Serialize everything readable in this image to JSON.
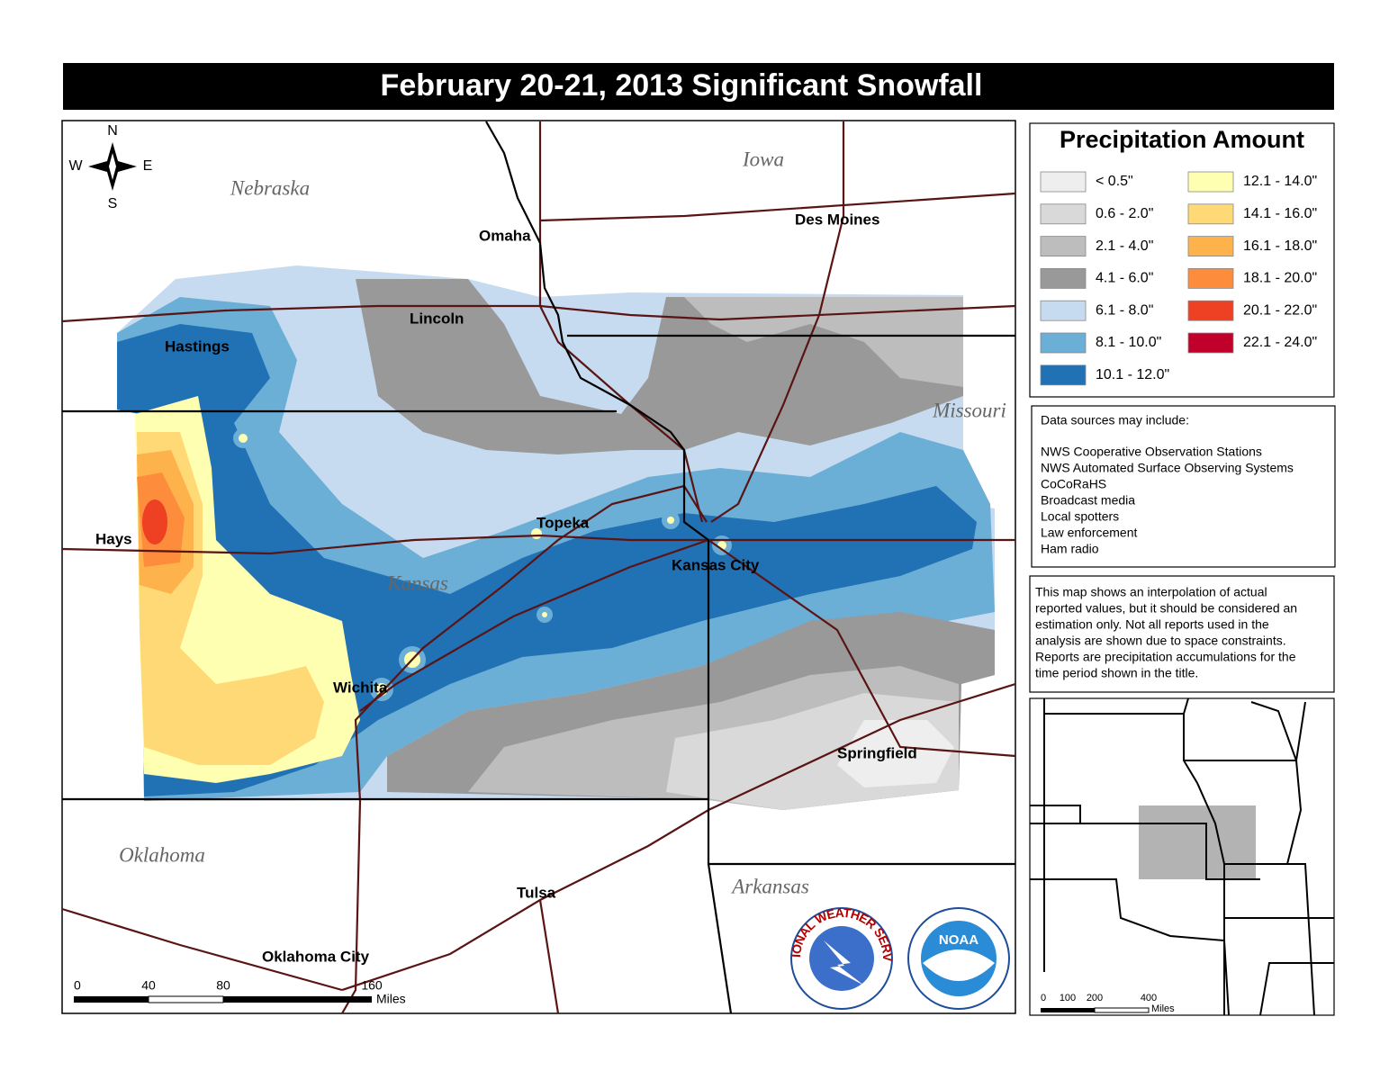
{
  "title": "February 20-21, 2013 Significant Snowfall",
  "compass": {
    "north": "N",
    "south": "S",
    "east": "E",
    "west": "W"
  },
  "states": [
    "Nebraska",
    "Iowa",
    "Missouri",
    "Kansas",
    "Oklahoma",
    "Arkansas"
  ],
  "cities": [
    "Omaha",
    "Des Moines",
    "Lincoln",
    "Hastings",
    "Hays",
    "Topeka",
    "Kansas City",
    "Wichita",
    "Springfield",
    "Tulsa",
    "Oklahoma City"
  ],
  "scale_bar": {
    "ticks": [
      "0",
      "40",
      "80",
      "160"
    ],
    "unit": "Miles"
  },
  "legend": {
    "title": "Precipitation Amount",
    "items": [
      {
        "label": "< 0.5\"",
        "color": "#eeeeee"
      },
      {
        "label": "0.6 - 2.0\"",
        "color": "#d9d9d9"
      },
      {
        "label": "2.1 - 4.0\"",
        "color": "#bdbdbd"
      },
      {
        "label": "4.1 - 6.0\"",
        "color": "#999999"
      },
      {
        "label": "6.1 - 8.0\"",
        "color": "#c6dbef"
      },
      {
        "label": "8.1 - 10.0\"",
        "color": "#6baed6"
      },
      {
        "label": "10.1 - 12.0\"",
        "color": "#2171b5"
      },
      {
        "label": "12.1 - 14.0\"",
        "color": "#ffffb2"
      },
      {
        "label": "14.1 - 16.0\"",
        "color": "#fed976"
      },
      {
        "label": "16.1 - 18.0\"",
        "color": "#feb24c"
      },
      {
        "label": "18.1 - 20.0\"",
        "color": "#fd8d3c"
      },
      {
        "label": "20.1 - 22.0\"",
        "color": "#ee4023"
      },
      {
        "label": "22.1 - 24.0\"",
        "color": "#c0002a"
      }
    ]
  },
  "data_sources": {
    "heading": "Data sources may include:",
    "items": [
      "NWS Cooperative Observation Stations",
      "NWS Automated Surface Observing Systems",
      "CoCoRaHS",
      "Broadcast media",
      "Local spotters",
      "Law enforcement",
      "Ham radio"
    ]
  },
  "note": [
    "This map shows an interpolation of actual",
    "reported values, but it should be considered an",
    "estimation only. Not all reports used in the",
    "analysis are shown due to space constraints.",
    "Reports are precipitation accumulations for the",
    "time period shown in the title."
  ],
  "inset_scale": {
    "ticks": [
      "0",
      "100",
      "200",
      "400"
    ],
    "unit": "Miles"
  },
  "logos": {
    "nws": "NATIONAL WEATHER SERVICE",
    "noaa": "NOAA"
  }
}
